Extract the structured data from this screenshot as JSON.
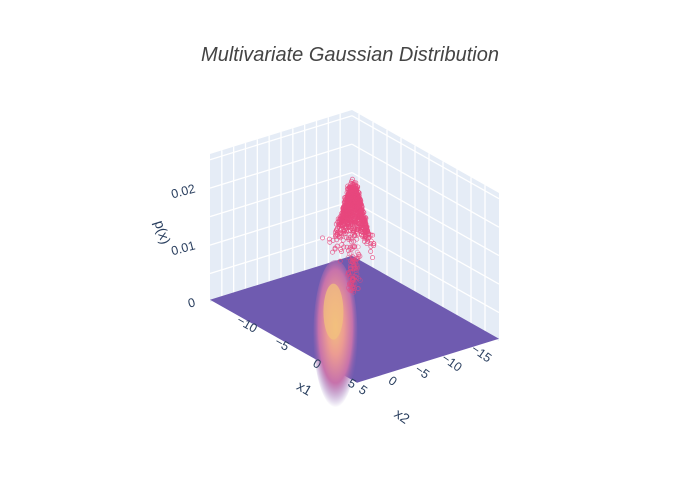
{
  "chart_data": {
    "type": "scatter",
    "title": "Multivariate Gaussian Distribution",
    "scene": {
      "xaxis": {
        "title": "x1",
        "ticks": [
          -10,
          -5,
          0,
          5
        ],
        "tick_labels": [
          "−10",
          "−5",
          "0",
          "5"
        ],
        "range": [
          -13,
          8
        ]
      },
      "yaxis": {
        "title": "x2",
        "ticks": [
          -15,
          -10,
          -5,
          0,
          5
        ],
        "tick_labels": [
          "−15",
          "−10",
          "−5",
          "0",
          "5"
        ],
        "range": [
          -16,
          8
        ]
      },
      "zaxis": {
        "title": "p(x)",
        "ticks": [
          0,
          0.01,
          0.02
        ],
        "tick_labels": [
          "0",
          "0.01",
          "0.02"
        ],
        "range": [
          0,
          0.026
        ]
      },
      "grid": true,
      "background": "#e5ecf6"
    },
    "series": [
      {
        "kind": "surface",
        "colorscale": [
          "#6f5bb0",
          "#a066b0",
          "#d277a5",
          "#ec9c92",
          "#f2c07e"
        ],
        "peak": 0.006,
        "center": [
          -1,
          -2
        ]
      },
      {
        "kind": "scatter3d",
        "marker": "open-circle",
        "color": "#e8487e",
        "center": [
          -1,
          -2
        ],
        "p_range": [
          0.015,
          0.026
        ]
      }
    ]
  }
}
